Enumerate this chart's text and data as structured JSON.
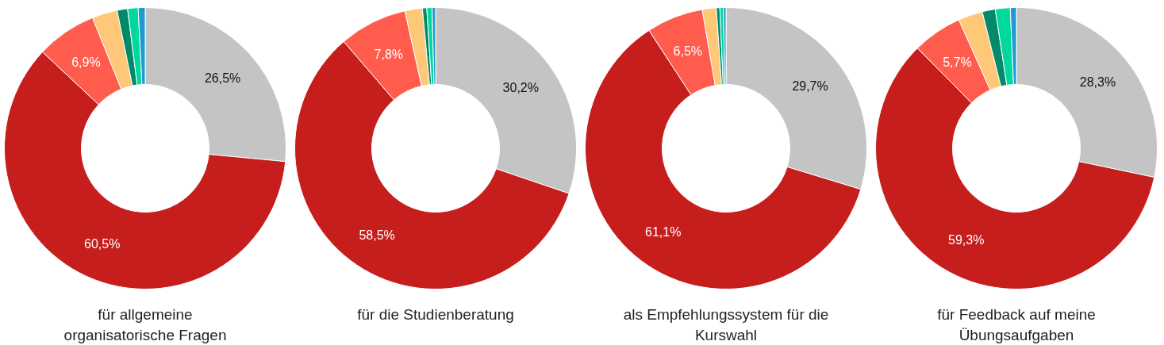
{
  "chart_data": [
    {
      "type": "donut",
      "title": "für allgemeine\norganisatorische Fragen",
      "categories": [
        null,
        null,
        null,
        null,
        null,
        null,
        null
      ],
      "values": [
        26.5,
        60.5,
        6.9,
        2.9,
        1.2,
        1.2,
        0.8
      ],
      "value_labels": [
        "26,5%",
        "60,5%",
        "6,9%",
        null,
        null,
        null,
        null
      ],
      "colors": [
        "#c4c4c4",
        "#c61d1d",
        "#ff5c4d",
        "#ffc878",
        "#008a6a",
        "#00d8a0",
        "#1f9bd0"
      ]
    },
    {
      "type": "donut",
      "title": "für die Studienberatung",
      "categories": [
        null,
        null,
        null,
        null,
        null,
        null,
        null
      ],
      "values": [
        30.2,
        58.5,
        7.8,
        2.0,
        0.5,
        0.6,
        0.4
      ],
      "value_labels": [
        "30,2%",
        "58,5%",
        "7,8%",
        null,
        null,
        null,
        null
      ],
      "colors": [
        "#c4c4c4",
        "#c61d1d",
        "#ff5c4d",
        "#ffc878",
        "#008a6a",
        "#00d8a0",
        "#1f9bd0"
      ]
    },
    {
      "type": "donut",
      "title": "als Empfehlungssystem für die\nKurswahl",
      "categories": [
        null,
        null,
        null,
        null,
        null,
        null,
        null
      ],
      "values": [
        29.7,
        61.1,
        6.5,
        1.6,
        0.4,
        0.4,
        0.3
      ],
      "value_labels": [
        "29,7%",
        "61,1%",
        "6,5%",
        null,
        null,
        null,
        null
      ],
      "colors": [
        "#c4c4c4",
        "#c61d1d",
        "#ff5c4d",
        "#ffc878",
        "#008a6a",
        "#00d8a0",
        "#1f9bd0"
      ]
    },
    {
      "type": "donut",
      "title": "für Feedback auf meine\nÜbungsaufgaben",
      "categories": [
        null,
        null,
        null,
        null,
        null,
        null,
        null
      ],
      "values": [
        28.3,
        59.3,
        5.7,
        2.8,
        1.5,
        1.7,
        0.7
      ],
      "value_labels": [
        "28,3%",
        "59,3%",
        "5,7%",
        null,
        null,
        null,
        null
      ],
      "colors": [
        "#c4c4c4",
        "#c61d1d",
        "#ff5c4d",
        "#ffc878",
        "#008a6a",
        "#00d8a0",
        "#1f9bd0"
      ]
    }
  ]
}
